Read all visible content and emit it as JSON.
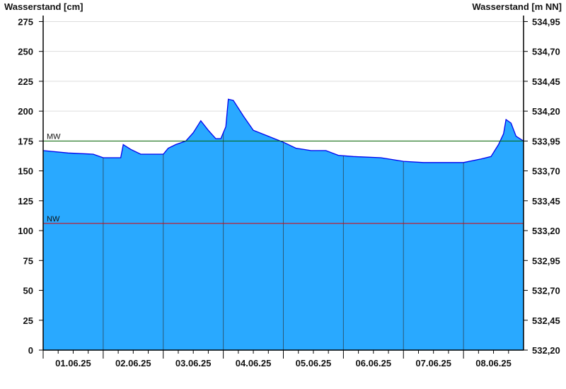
{
  "chart_data": {
    "type": "area",
    "ylabel_left": "Wasserstand [cm]",
    "ylabel_right": "Wasserstand [m NN]",
    "ylim": [
      0,
      280
    ],
    "yticks_left": [
      "0",
      "25",
      "50",
      "75",
      "100",
      "125",
      "150",
      "175",
      "200",
      "225",
      "250",
      "275"
    ],
    "yticks_right": [
      "532,20",
      "532,45",
      "532,70",
      "532,95",
      "533,20",
      "533,45",
      "533,70",
      "533,95",
      "534,20",
      "534,45",
      "534,70",
      "534,95"
    ],
    "xlim": [
      "2025-06-01T00:00",
      "2025-06-09T00:00"
    ],
    "xticks": [
      "01.06.25",
      "02.06.25",
      "03.06.25",
      "04.06.25",
      "05.06.25",
      "06.06.25",
      "07.06.25",
      "08.06.25"
    ],
    "grid": true,
    "colors": {
      "fill": "#29a9ff",
      "line": "#0000ee",
      "mw": "#006400",
      "nw": "#e00000",
      "grid": "#dddddd",
      "day_line": "#2a5a7a"
    },
    "reference_lines": [
      {
        "label": "MW",
        "value": 175
      },
      {
        "label": "NW",
        "value": 106
      }
    ],
    "series": [
      {
        "x": [
          "2025-06-01T00:00",
          "2025-06-01T10:00",
          "2025-06-01T20:00",
          "2025-06-02T00:00",
          "2025-06-02T07:00",
          "2025-06-02T08:00",
          "2025-06-02T11:00",
          "2025-06-02T15:00",
          "2025-06-03T00:00",
          "2025-06-03T02:00",
          "2025-06-03T05:00",
          "2025-06-03T09:00",
          "2025-06-03T12:00",
          "2025-06-03T15:00",
          "2025-06-03T18:00",
          "2025-06-03T21:00",
          "2025-06-03T23:00",
          "2025-06-04T01:00",
          "2025-06-04T02:00",
          "2025-06-04T04:00",
          "2025-06-04T08:00",
          "2025-06-04T12:00",
          "2025-06-04T18:00",
          "2025-06-05T00:00",
          "2025-06-05T05:00",
          "2025-06-05T11:00",
          "2025-06-05T17:00",
          "2025-06-05T22:00",
          "2025-06-06T04:00",
          "2025-06-06T15:00",
          "2025-06-07T00:00",
          "2025-06-07T08:00",
          "2025-06-08T00:00",
          "2025-06-08T07:00",
          "2025-06-08T11:00",
          "2025-06-08T14:00",
          "2025-06-08T16:00",
          "2025-06-08T17:00",
          "2025-06-08T19:00",
          "2025-06-08T21:00",
          "2025-06-09T00:00"
        ],
        "y": [
          167,
          165,
          164,
          161,
          161,
          172,
          168,
          164,
          164,
          169,
          172,
          175,
          182,
          192,
          184,
          177,
          177,
          187,
          210,
          209,
          196,
          184,
          179,
          174,
          169,
          167,
          167,
          163,
          162,
          161,
          158,
          157,
          157,
          160,
          162,
          172,
          181,
          193,
          190,
          179,
          175
        ]
      }
    ]
  }
}
